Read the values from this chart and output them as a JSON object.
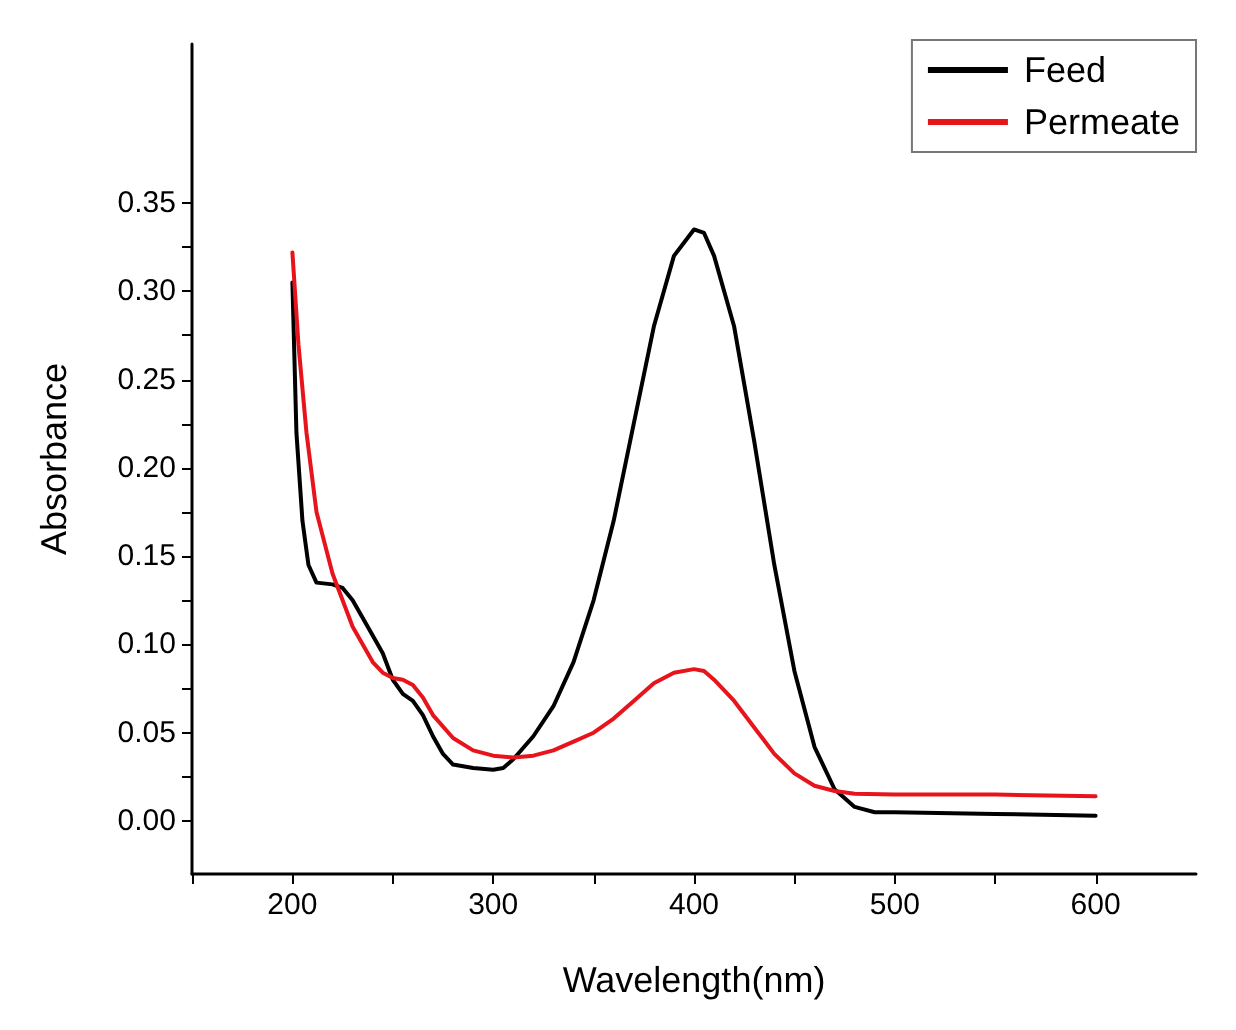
{
  "chart_data": {
    "type": "line",
    "xlabel": "Wavelength(nm)",
    "ylabel": "Absorbance",
    "xlim": [
      150,
      650
    ],
    "ylim": [
      -0.03,
      0.44
    ],
    "xticks": [
      {
        "value": 150,
        "label": null
      },
      200,
      {
        "value": 250,
        "label": null
      },
      300,
      {
        "value": 350,
        "label": null
      },
      400,
      {
        "value": 450,
        "label": null
      },
      500,
      {
        "value": 550,
        "label": null
      },
      600
    ],
    "yticks": [
      {
        "value": 0,
        "label": "0.00"
      },
      {
        "value": 0.025,
        "label": null
      },
      {
        "value": 0.05,
        "label": "0.05"
      },
      {
        "value": 0.075,
        "label": null
      },
      {
        "value": 0.1,
        "label": "0.10"
      },
      {
        "value": 0.125,
        "label": null
      },
      {
        "value": 0.15,
        "label": "0.15"
      },
      {
        "value": 0.175,
        "label": null
      },
      {
        "value": 0.2,
        "label": "0.20"
      },
      {
        "value": 0.225,
        "label": null
      },
      {
        "value": 0.25,
        "label": "0.25"
      },
      {
        "value": 0.275,
        "label": null
      },
      {
        "value": 0.3,
        "label": "0.30"
      },
      {
        "value": 0.325,
        "label": null
      },
      {
        "value": 0.35,
        "label": "0.35"
      }
    ],
    "grid": false,
    "legend": "top right",
    "marker": "none",
    "line_style": "solid",
    "series": [
      {
        "name": "Feed",
        "color": "#000000",
        "x": [
          200,
          202,
          205,
          208,
          212,
          220,
          225,
          230,
          240,
          245,
          250,
          255,
          260,
          265,
          270,
          275,
          280,
          290,
          300,
          305,
          310,
          320,
          330,
          340,
          350,
          360,
          370,
          380,
          390,
          400,
          405,
          410,
          420,
          430,
          440,
          450,
          460,
          470,
          480,
          490,
          500,
          550,
          600
        ],
        "values": [
          0.305,
          0.22,
          0.17,
          0.145,
          0.135,
          0.134,
          0.132,
          0.125,
          0.105,
          0.095,
          0.08,
          0.072,
          0.068,
          0.06,
          0.048,
          0.038,
          0.032,
          0.03,
          0.029,
          0.03,
          0.035,
          0.048,
          0.065,
          0.09,
          0.125,
          0.17,
          0.225,
          0.28,
          0.32,
          0.335,
          0.333,
          0.32,
          0.28,
          0.215,
          0.145,
          0.085,
          0.042,
          0.018,
          0.008,
          0.005,
          0.005,
          0.004,
          0.003
        ]
      },
      {
        "name": "Permeate",
        "color": "#e8141c",
        "x": [
          200,
          203,
          207,
          212,
          220,
          230,
          240,
          245,
          250,
          255,
          260,
          265,
          270,
          280,
          290,
          300,
          310,
          320,
          330,
          340,
          350,
          360,
          370,
          380,
          390,
          400,
          405,
          410,
          420,
          430,
          440,
          450,
          460,
          470,
          480,
          500,
          550,
          600
        ],
        "values": [
          0.322,
          0.27,
          0.22,
          0.175,
          0.14,
          0.11,
          0.09,
          0.084,
          0.081,
          0.08,
          0.077,
          0.07,
          0.06,
          0.047,
          0.04,
          0.037,
          0.036,
          0.037,
          0.04,
          0.045,
          0.05,
          0.058,
          0.068,
          0.078,
          0.084,
          0.086,
          0.085,
          0.08,
          0.068,
          0.053,
          0.038,
          0.027,
          0.02,
          0.017,
          0.0155,
          0.015,
          0.015,
          0.014
        ]
      }
    ]
  }
}
